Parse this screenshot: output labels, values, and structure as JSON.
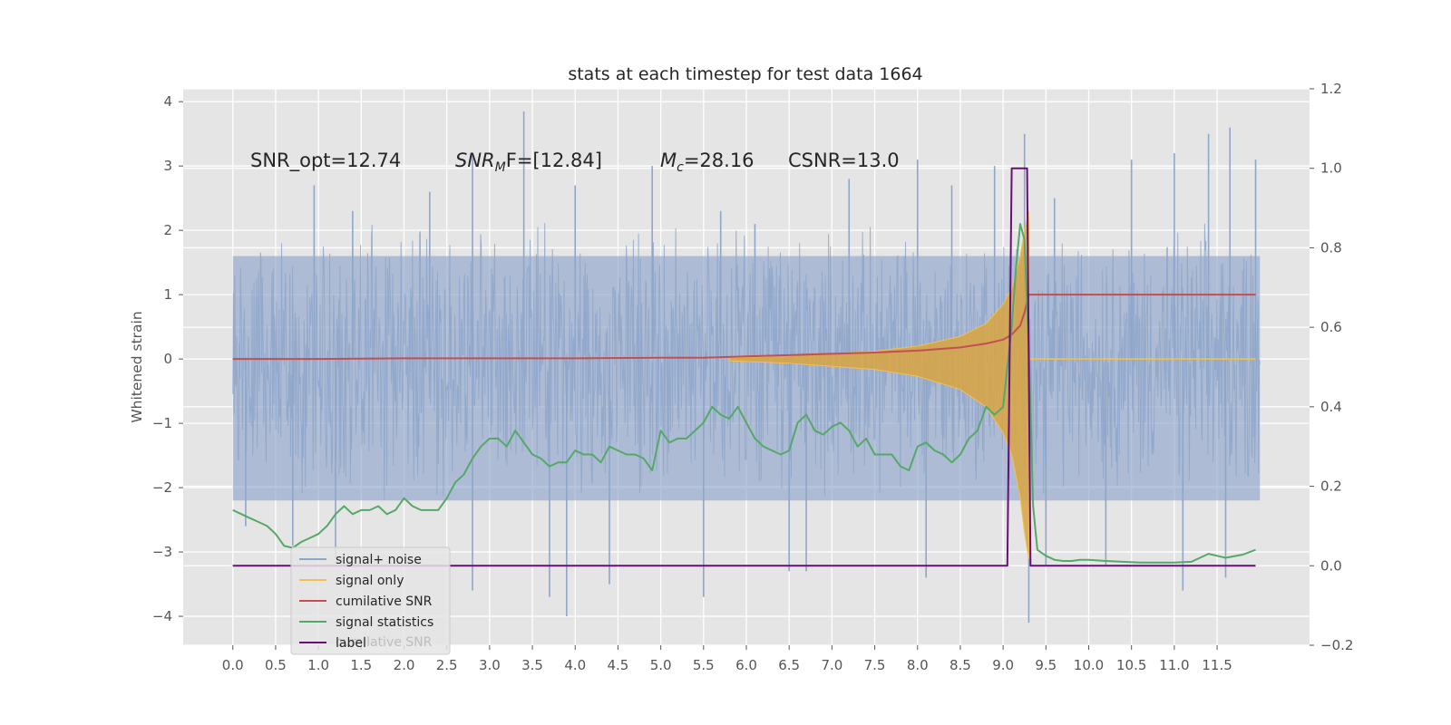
{
  "chart_data": {
    "type": "line",
    "title": "stats at each timestep for test data 1664",
    "xlabel": "",
    "ylabel": "Whitened strain",
    "xlim": [
      -0.58,
      12.58
    ],
    "ylim": [
      -4.45,
      4.2
    ],
    "y2lim": [
      -0.2,
      1.2
    ],
    "xticks": [
      "0.0",
      "0.5",
      "1.0",
      "1.5",
      "2.0",
      "2.5",
      "3.0",
      "3.5",
      "4.0",
      "4.5",
      "5.0",
      "5.5",
      "6.0",
      "6.5",
      "7.0",
      "7.5",
      "8.0",
      "8.5",
      "9.0",
      "9.5",
      "10.0",
      "10.5",
      "11.0",
      "11.5"
    ],
    "yticks": [
      "4",
      "3",
      "2",
      "1",
      "0",
      "−1",
      "−2",
      "−3",
      "−4"
    ],
    "y2ticks": [
      "1.2",
      "1.0",
      "0.8",
      "0.6",
      "0.4",
      "0.2",
      "0.0",
      "−0.2"
    ],
    "grid": true,
    "legend_position": "lower-left",
    "annotations": {
      "snr_opt": "SNR_opt=12.74",
      "snr_mf_base": "SNR",
      "snr_mf_sub": "M",
      "snr_mf_rest": "F=[12.84]",
      "mc_base": "M",
      "mc_sub": "c",
      "mc_rest": "=28.16",
      "csnr": "CSNR=13.0"
    },
    "legend": {
      "items": [
        {
          "label": "signal+ noise",
          "color": "#8fa6cb"
        },
        {
          "label": "signal only",
          "color": "#f2c14e"
        },
        {
          "label": "cumilative SNR",
          "color": "#c44e52"
        },
        {
          "label": "signal statistics",
          "color": "#55a868"
        },
        {
          "label": "label",
          "color": "#6a0f7a"
        }
      ],
      "ghost_text": "cumilative SNR"
    },
    "series": [
      {
        "name": "cumilative SNR",
        "axis": "left",
        "color": "#c44e52",
        "x": [
          0.0,
          1.0,
          2.0,
          3.0,
          4.0,
          5.0,
          5.5,
          6.0,
          6.5,
          7.0,
          7.5,
          8.0,
          8.5,
          8.8,
          9.0,
          9.1,
          9.2,
          9.25,
          9.3,
          11.95
        ],
        "y": [
          0.0,
          0.0,
          0.01,
          0.01,
          0.01,
          0.02,
          0.02,
          0.04,
          0.06,
          0.08,
          0.1,
          0.13,
          0.18,
          0.24,
          0.3,
          0.38,
          0.52,
          0.72,
          1.0,
          1.0
        ]
      },
      {
        "name": "signal statistics",
        "axis": "right",
        "color": "#55a868",
        "x": [
          0.0,
          0.1,
          0.2,
          0.3,
          0.4,
          0.5,
          0.6,
          0.7,
          0.8,
          0.9,
          1.0,
          1.1,
          1.2,
          1.3,
          1.4,
          1.5,
          1.6,
          1.7,
          1.8,
          1.9,
          2.0,
          2.1,
          2.2,
          2.3,
          2.4,
          2.5,
          2.6,
          2.7,
          2.8,
          2.9,
          3.0,
          3.1,
          3.2,
          3.3,
          3.4,
          3.5,
          3.6,
          3.7,
          3.8,
          3.9,
          4.0,
          4.1,
          4.2,
          4.3,
          4.4,
          4.5,
          4.6,
          4.7,
          4.8,
          4.9,
          5.0,
          5.1,
          5.2,
          5.3,
          5.4,
          5.5,
          5.6,
          5.7,
          5.8,
          5.9,
          6.0,
          6.1,
          6.2,
          6.3,
          6.4,
          6.5,
          6.6,
          6.7,
          6.8,
          6.9,
          7.0,
          7.1,
          7.2,
          7.3,
          7.4,
          7.5,
          7.6,
          7.7,
          7.8,
          7.9,
          8.0,
          8.1,
          8.2,
          8.3,
          8.4,
          8.5,
          8.6,
          8.7,
          8.8,
          8.9,
          9.0,
          9.1,
          9.15,
          9.2,
          9.25,
          9.3,
          9.35,
          9.4,
          9.5,
          9.6,
          9.7,
          9.8,
          9.9,
          10.0,
          10.2,
          10.4,
          10.6,
          10.8,
          11.0,
          11.2,
          11.4,
          11.5,
          11.6,
          11.8,
          11.95
        ],
        "y": [
          0.14,
          0.13,
          0.12,
          0.11,
          0.1,
          0.08,
          0.05,
          0.045,
          0.06,
          0.07,
          0.08,
          0.1,
          0.13,
          0.15,
          0.13,
          0.14,
          0.14,
          0.15,
          0.13,
          0.14,
          0.17,
          0.15,
          0.14,
          0.14,
          0.14,
          0.17,
          0.21,
          0.23,
          0.27,
          0.3,
          0.32,
          0.32,
          0.3,
          0.34,
          0.31,
          0.28,
          0.27,
          0.25,
          0.26,
          0.26,
          0.29,
          0.28,
          0.28,
          0.26,
          0.3,
          0.29,
          0.28,
          0.28,
          0.27,
          0.24,
          0.34,
          0.31,
          0.32,
          0.32,
          0.34,
          0.36,
          0.4,
          0.38,
          0.37,
          0.4,
          0.36,
          0.32,
          0.3,
          0.29,
          0.28,
          0.29,
          0.36,
          0.38,
          0.34,
          0.33,
          0.35,
          0.36,
          0.34,
          0.3,
          0.32,
          0.28,
          0.28,
          0.28,
          0.25,
          0.24,
          0.3,
          0.31,
          0.29,
          0.28,
          0.26,
          0.28,
          0.32,
          0.34,
          0.4,
          0.38,
          0.4,
          0.6,
          0.75,
          0.86,
          0.82,
          0.55,
          0.15,
          0.04,
          0.025,
          0.015,
          0.012,
          0.012,
          0.015,
          0.015,
          0.012,
          0.01,
          0.008,
          0.008,
          0.008,
          0.01,
          0.03,
          0.025,
          0.02,
          0.028,
          0.04
        ]
      },
      {
        "name": "label",
        "axis": "right",
        "color": "#6a0f7a",
        "x": [
          0.0,
          9.05,
          9.1,
          9.28,
          9.32,
          11.95
        ],
        "y": [
          0.0,
          0.0,
          1.0,
          1.0,
          0.0,
          0.0
        ]
      },
      {
        "name": "signal+ noise",
        "axis": "left",
        "color": "#8fa6cb",
        "x_range": [
          0.0,
          12.0
        ],
        "band_y_range": [
          -2.2,
          1.6
        ],
        "spikes_up": [
          [
            0.95,
            2.7
          ],
          [
            1.4,
            2.3
          ],
          [
            2.3,
            2.6
          ],
          [
            2.8,
            3.2
          ],
          [
            3.4,
            3.85
          ],
          [
            4.0,
            2.7
          ],
          [
            4.9,
            3.0
          ],
          [
            5.7,
            2.3
          ],
          [
            6.1,
            2.1
          ],
          [
            7.2,
            2.8
          ],
          [
            8.0,
            3.1
          ],
          [
            8.4,
            2.7
          ],
          [
            8.9,
            3.0
          ],
          [
            9.25,
            3.5
          ],
          [
            9.6,
            2.5
          ],
          [
            10.5,
            3.1
          ],
          [
            11.0,
            3.2
          ],
          [
            11.4,
            3.5
          ],
          [
            11.65,
            3.6
          ],
          [
            11.95,
            3.1
          ]
        ],
        "spikes_down": [
          [
            0.15,
            -2.6
          ],
          [
            0.7,
            -2.9
          ],
          [
            1.2,
            -3.1
          ],
          [
            2.8,
            -3.6
          ],
          [
            3.7,
            -3.7
          ],
          [
            3.9,
            -4.0
          ],
          [
            4.4,
            -3.5
          ],
          [
            5.5,
            -3.7
          ],
          [
            6.5,
            -3.3
          ],
          [
            6.7,
            -3.3
          ],
          [
            8.1,
            -3.4
          ],
          [
            9.3,
            -4.1
          ],
          [
            9.5,
            -3.2
          ],
          [
            10.2,
            -3.2
          ],
          [
            11.1,
            -3.6
          ],
          [
            11.6,
            -3.4
          ]
        ]
      },
      {
        "name": "signal only",
        "axis": "left",
        "color": "#f2c14e",
        "envelope_x": [
          5.8,
          6.5,
          7.5,
          8.0,
          8.5,
          8.8,
          9.0,
          9.1,
          9.2,
          9.25,
          9.3
        ],
        "envelope_y": [
          0.02,
          0.05,
          0.12,
          0.2,
          0.35,
          0.55,
          0.85,
          1.1,
          1.6,
          2.0,
          2.3
        ]
      }
    ]
  }
}
